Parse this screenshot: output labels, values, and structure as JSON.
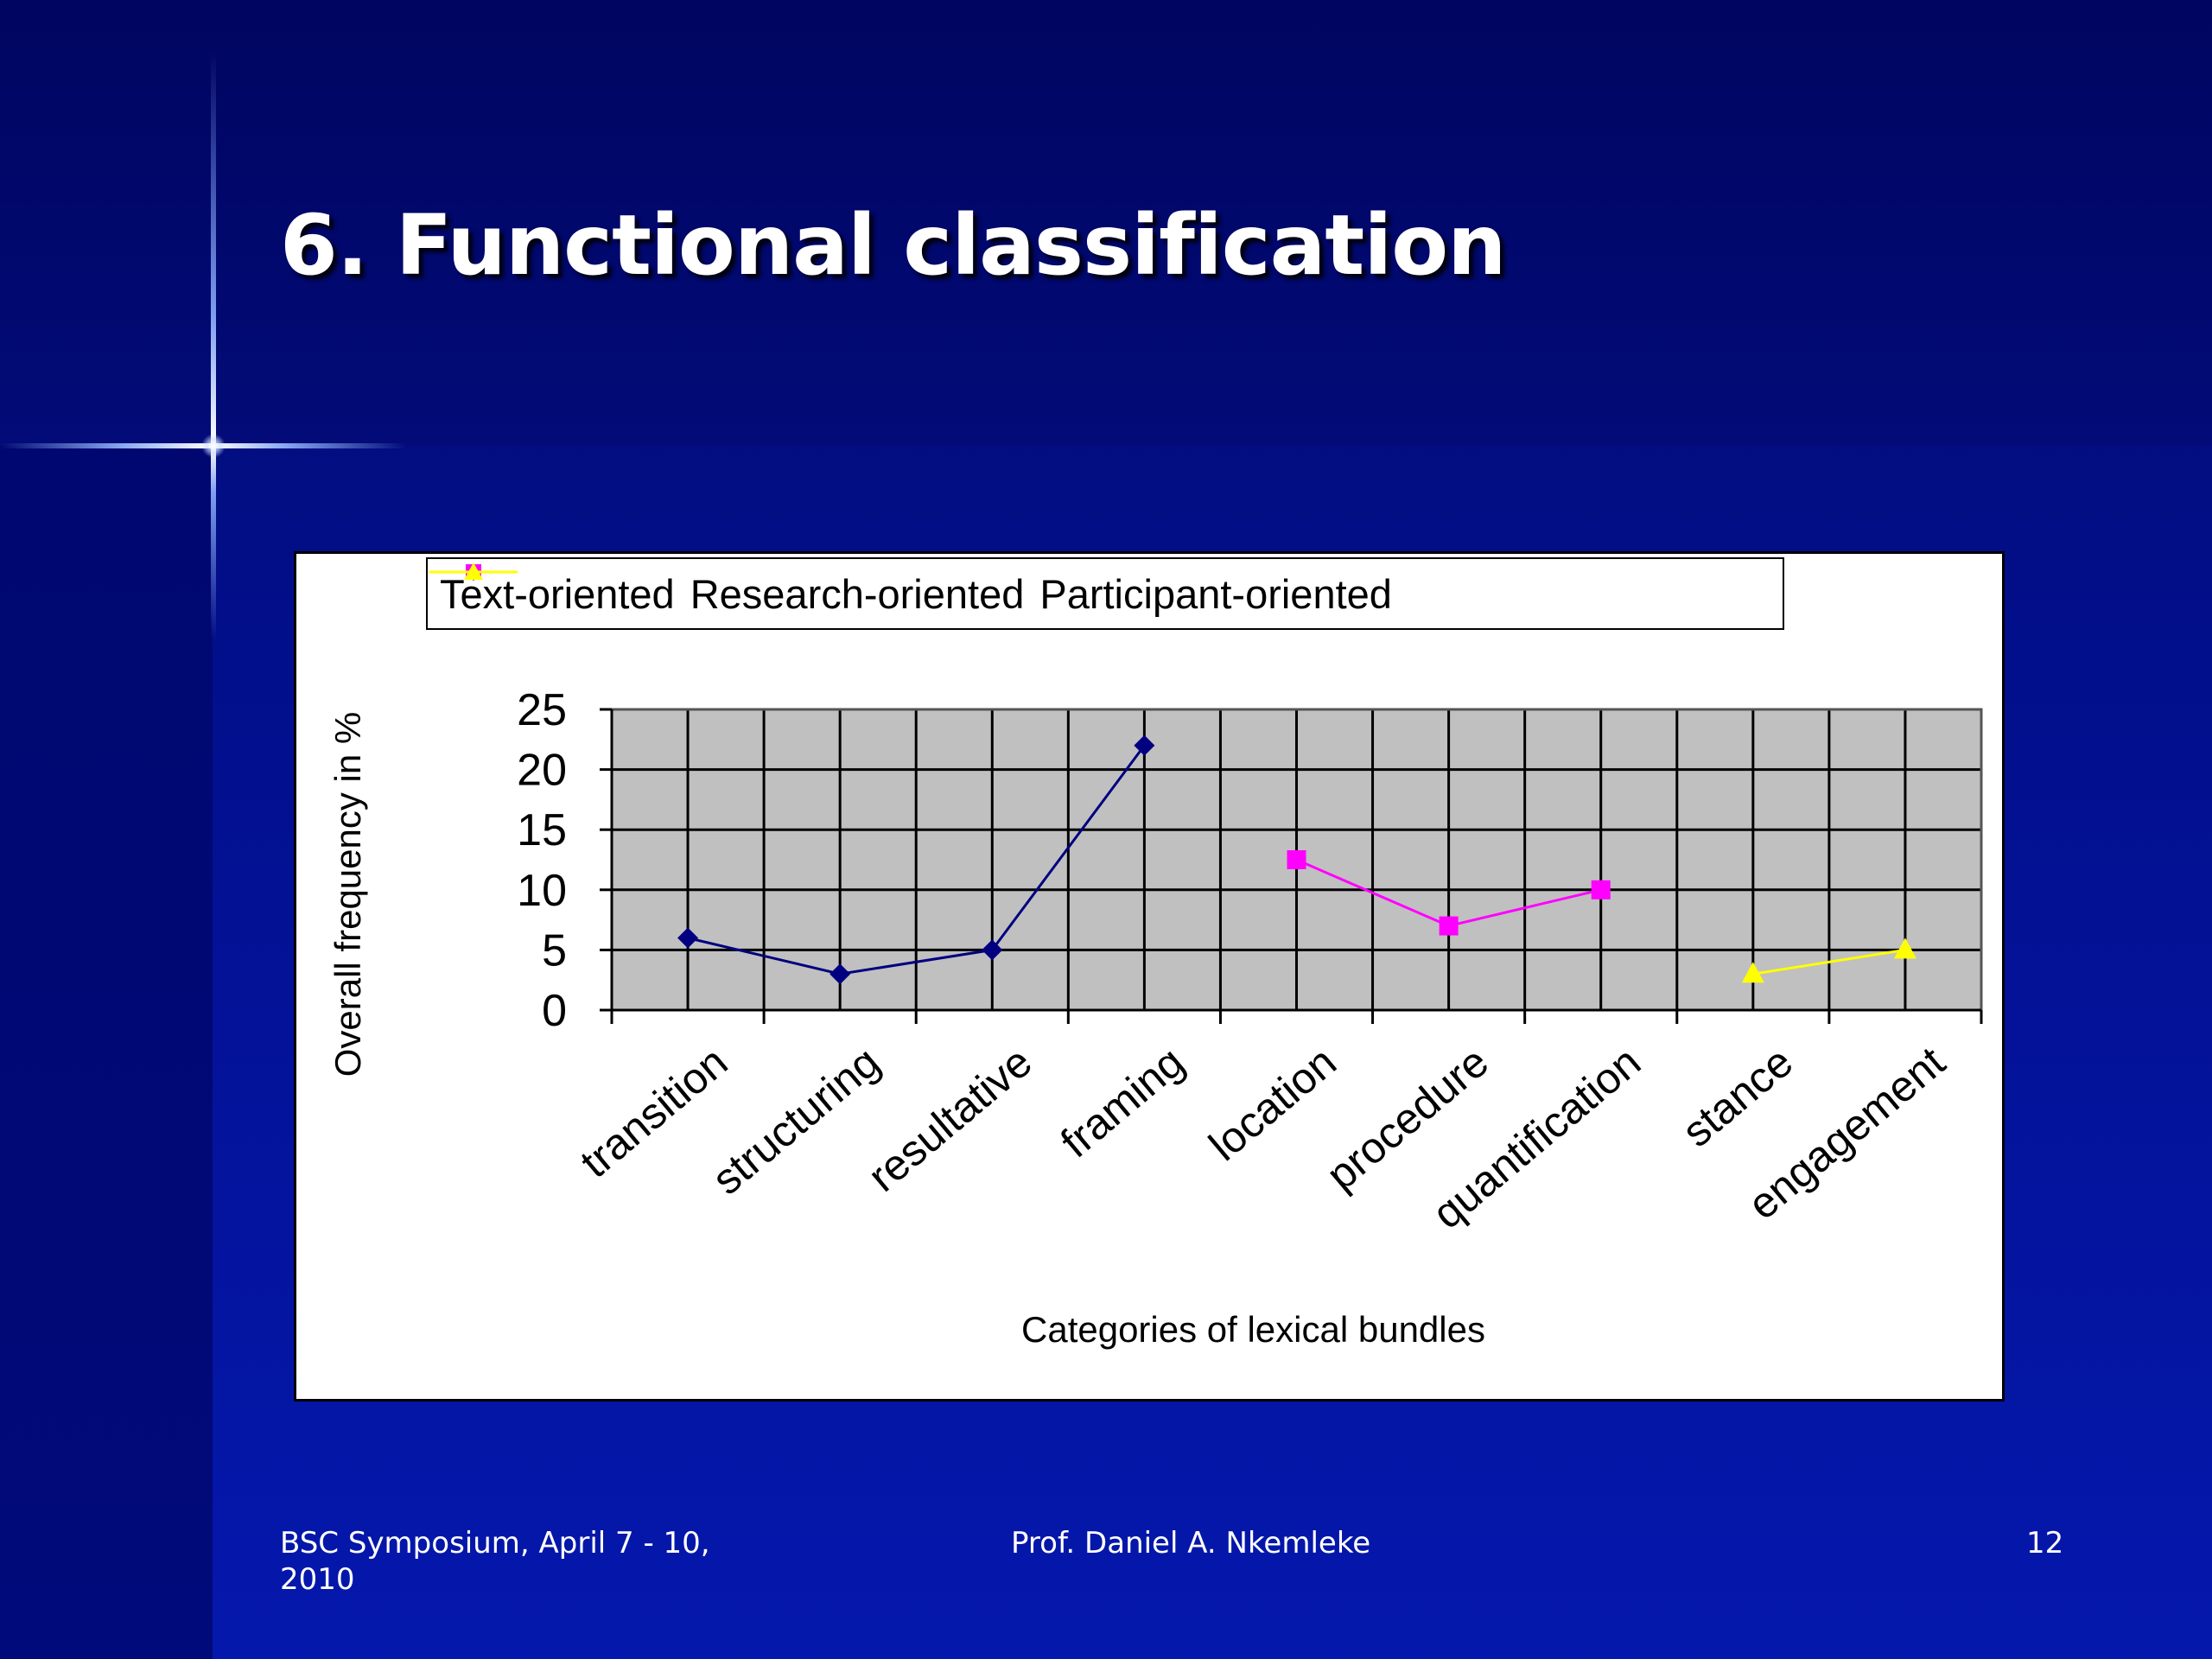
{
  "slide": {
    "title": "6. Functional classification"
  },
  "footer": {
    "left": "BSC Symposium,  April 7 - 10, 2010",
    "center": "Prof. Daniel A. Nkemleke",
    "right": "12"
  },
  "chart_data": {
    "type": "line",
    "title": "",
    "xlabel": "Categories of lexical bundles",
    "ylabel": "Overall frequency in %",
    "ylim": [
      0,
      25
    ],
    "yticks": [
      0,
      5,
      10,
      15,
      20,
      25
    ],
    "grid": true,
    "legend_position": "top",
    "categories": [
      "transition",
      "structuring",
      "resultative",
      "framing",
      "location",
      "procedure",
      "quantification",
      "stance",
      "engagement"
    ],
    "series": [
      {
        "name": "Text-oriented",
        "color": "#000080",
        "marker": "diamond",
        "values": [
          6,
          3,
          5,
          22,
          null,
          null,
          null,
          null,
          null
        ]
      },
      {
        "name": "Research-oriented",
        "color": "#ff00ff",
        "marker": "square",
        "values": [
          null,
          null,
          null,
          null,
          12.5,
          7,
          10,
          null,
          null
        ]
      },
      {
        "name": "Participant-oriented",
        "color": "#ffff00",
        "marker": "triangle",
        "values": [
          null,
          null,
          null,
          null,
          null,
          null,
          null,
          3,
          5
        ]
      }
    ]
  }
}
